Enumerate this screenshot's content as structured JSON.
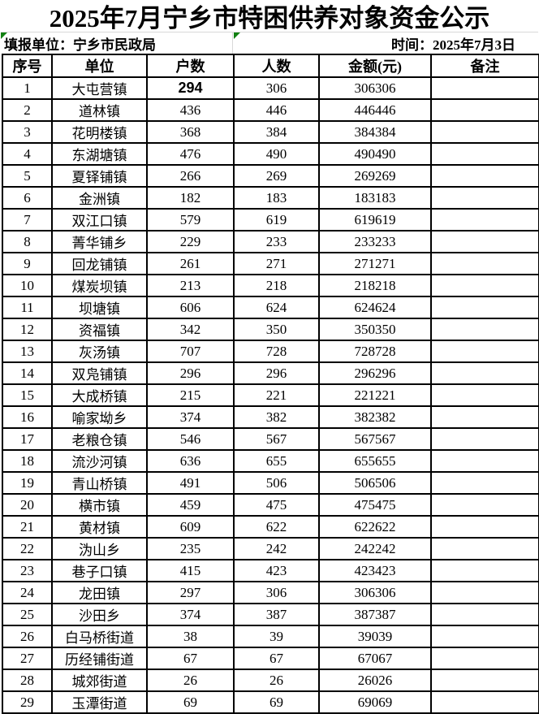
{
  "title": "2025年7月宁乡市特困供养对象资金公示",
  "subtitle": {
    "report_unit": "填报单位：宁乡市民政局",
    "report_time": "时间：2025年7月3日"
  },
  "colors": {
    "triangle_green": "#128012",
    "gridline_gray": "#d9d9d9",
    "border_black": "#000000",
    "background": "#ffffff"
  },
  "icons": {
    "error_indicator": "excel-green-corner-triangle"
  },
  "table": {
    "headers": [
      "序号",
      "单位",
      "户数",
      "人数",
      "金额(元)",
      "备注"
    ],
    "rows": [
      {
        "seq": "1",
        "unit": "大屯营镇",
        "households": "294",
        "people": "306",
        "amount": "306306",
        "remark": "",
        "households_bold": true
      },
      {
        "seq": "2",
        "unit": "道林镇",
        "households": "436",
        "people": "446",
        "amount": "446446",
        "remark": ""
      },
      {
        "seq": "3",
        "unit": "花明楼镇",
        "households": "368",
        "people": "384",
        "amount": "384384",
        "remark": ""
      },
      {
        "seq": "4",
        "unit": "东湖塘镇",
        "households": "476",
        "people": "490",
        "amount": "490490",
        "remark": ""
      },
      {
        "seq": "5",
        "unit": "夏铎铺镇",
        "households": "266",
        "people": "269",
        "amount": "269269",
        "remark": ""
      },
      {
        "seq": "6",
        "unit": "金洲镇",
        "households": "182",
        "people": "183",
        "amount": "183183",
        "remark": ""
      },
      {
        "seq": "7",
        "unit": "双江口镇",
        "households": "579",
        "people": "619",
        "amount": "619619",
        "remark": ""
      },
      {
        "seq": "8",
        "unit": "菁华铺乡",
        "households": "229",
        "people": "233",
        "amount": "233233",
        "remark": ""
      },
      {
        "seq": "9",
        "unit": "回龙铺镇",
        "households": "261",
        "people": "271",
        "amount": "271271",
        "remark": ""
      },
      {
        "seq": "10",
        "unit": "煤炭坝镇",
        "households": "213",
        "people": "218",
        "amount": "218218",
        "remark": ""
      },
      {
        "seq": "11",
        "unit": "坝塘镇",
        "households": "606",
        "people": "624",
        "amount": "624624",
        "remark": ""
      },
      {
        "seq": "12",
        "unit": "资福镇",
        "households": "342",
        "people": "350",
        "amount": "350350",
        "remark": ""
      },
      {
        "seq": "13",
        "unit": "灰汤镇",
        "households": "707",
        "people": "728",
        "amount": "728728",
        "remark": ""
      },
      {
        "seq": "14",
        "unit": "双凫铺镇",
        "households": "296",
        "people": "296",
        "amount": "296296",
        "remark": ""
      },
      {
        "seq": "15",
        "unit": "大成桥镇",
        "households": "215",
        "people": "221",
        "amount": "221221",
        "remark": ""
      },
      {
        "seq": "16",
        "unit": "喻家坳乡",
        "households": "374",
        "people": "382",
        "amount": "382382",
        "remark": ""
      },
      {
        "seq": "17",
        "unit": "老粮仓镇",
        "households": "546",
        "people": "567",
        "amount": "567567",
        "remark": ""
      },
      {
        "seq": "18",
        "unit": "流沙河镇",
        "households": "636",
        "people": "655",
        "amount": "655655",
        "remark": ""
      },
      {
        "seq": "19",
        "unit": "青山桥镇",
        "households": "491",
        "people": "506",
        "amount": "506506",
        "remark": ""
      },
      {
        "seq": "20",
        "unit": "横市镇",
        "households": "459",
        "people": "475",
        "amount": "475475",
        "remark": ""
      },
      {
        "seq": "21",
        "unit": "黄材镇",
        "households": "609",
        "people": "622",
        "amount": "622622",
        "remark": ""
      },
      {
        "seq": "22",
        "unit": "沩山乡",
        "households": "235",
        "people": "242",
        "amount": "242242",
        "remark": ""
      },
      {
        "seq": "23",
        "unit": "巷子口镇",
        "households": "415",
        "people": "423",
        "amount": "423423",
        "remark": ""
      },
      {
        "seq": "24",
        "unit": "龙田镇",
        "households": "297",
        "people": "306",
        "amount": "306306",
        "remark": ""
      },
      {
        "seq": "25",
        "unit": "沙田乡",
        "households": "374",
        "people": "387",
        "amount": "387387",
        "remark": ""
      },
      {
        "seq": "26",
        "unit": "白马桥街道",
        "households": "38",
        "people": "39",
        "amount": "39039",
        "remark": ""
      },
      {
        "seq": "27",
        "unit": "历经铺街道",
        "households": "67",
        "people": "67",
        "amount": "67067",
        "remark": ""
      },
      {
        "seq": "28",
        "unit": "城郊街道",
        "households": "26",
        "people": "26",
        "amount": "26026",
        "remark": ""
      },
      {
        "seq": "29",
        "unit": "玉潭街道",
        "households": "69",
        "people": "69",
        "amount": "69069",
        "remark": ""
      }
    ]
  }
}
